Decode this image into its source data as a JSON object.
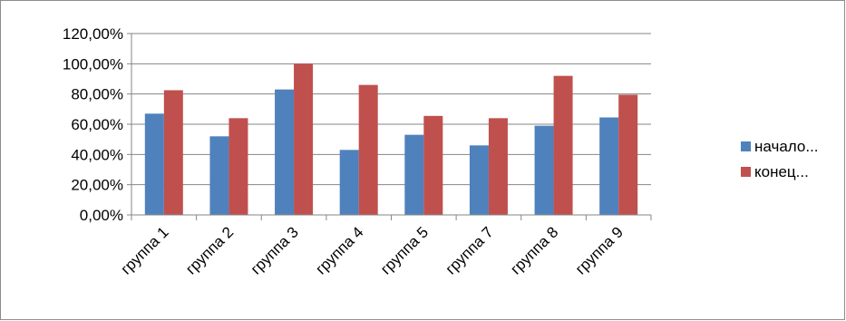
{
  "chart_data": {
    "type": "bar",
    "categories": [
      "группа 1",
      "группа 2",
      "группа 3",
      "группа 4",
      "группа 5",
      "группа 7",
      "группа 8",
      "группа 9"
    ],
    "series": [
      {
        "name": "начало...",
        "color": "#4f81bd",
        "values": [
          0.67,
          0.52,
          0.83,
          0.43,
          0.53,
          0.46,
          0.59,
          0.645
        ]
      },
      {
        "name": "конец...",
        "color": "#c0504d",
        "values": [
          0.825,
          0.64,
          1.0,
          0.86,
          0.655,
          0.64,
          0.92,
          0.795
        ]
      }
    ],
    "ylim": [
      0,
      1.2
    ],
    "yticks": [
      "0,00%",
      "20,00%",
      "40,00%",
      "60,00%",
      "80,00%",
      "100,00%",
      "120,00%"
    ],
    "grid": true,
    "legend": "right"
  }
}
